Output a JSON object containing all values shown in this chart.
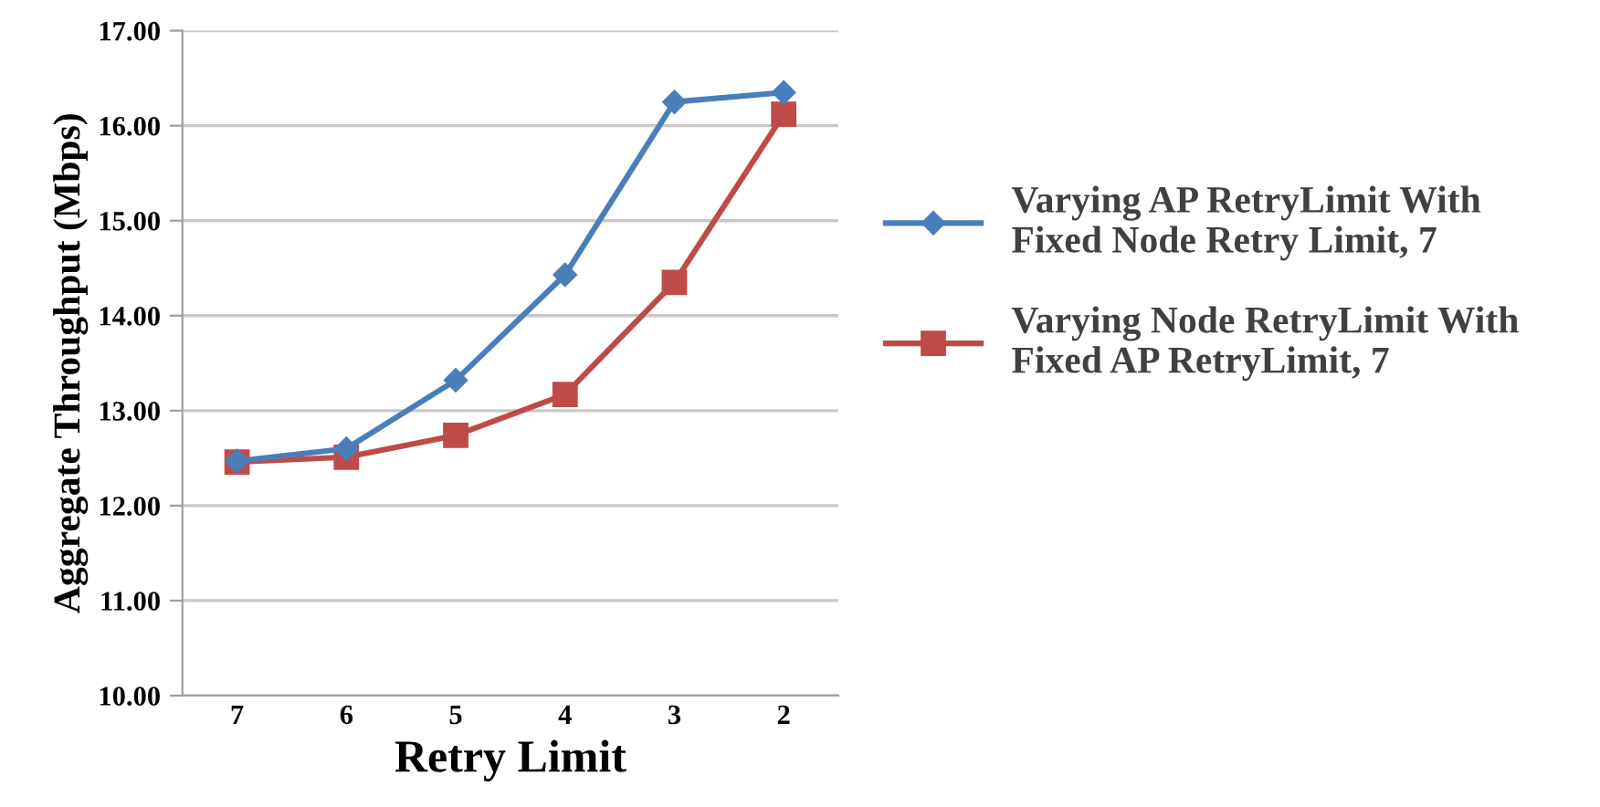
{
  "chart_data": {
    "type": "line",
    "xlabel": "Retry Limit",
    "ylabel": "Aggregate Throughput (Mbps)",
    "categories": [
      "7",
      "6",
      "5",
      "4",
      "3",
      "2"
    ],
    "series": [
      {
        "name": "Varying AP RetryLimit With\nFixed Node Retry Limit, 7",
        "color": "#4a7ebb",
        "marker": "diamond",
        "values": [
          12.47,
          12.6,
          13.32,
          14.43,
          16.25,
          16.35
        ]
      },
      {
        "name": "Varying Node RetryLimit With\nFixed AP RetryLimit, 7",
        "color": "#be4b48",
        "marker": "square",
        "values": [
          12.46,
          12.51,
          12.74,
          13.17,
          14.35,
          16.12
        ]
      }
    ],
    "ylim": [
      10,
      17
    ],
    "yticks": [
      {
        "value": 10,
        "label": "10.00"
      },
      {
        "value": 11,
        "label": "11.00"
      },
      {
        "value": 12,
        "label": "12.00"
      },
      {
        "value": 13,
        "label": "13.00"
      },
      {
        "value": 14,
        "label": "14.00"
      },
      {
        "value": 15,
        "label": "15.00"
      },
      {
        "value": 16,
        "label": "16.00"
      },
      {
        "value": 17,
        "label": "17.00"
      }
    ],
    "grid": "y",
    "legend": "right"
  }
}
